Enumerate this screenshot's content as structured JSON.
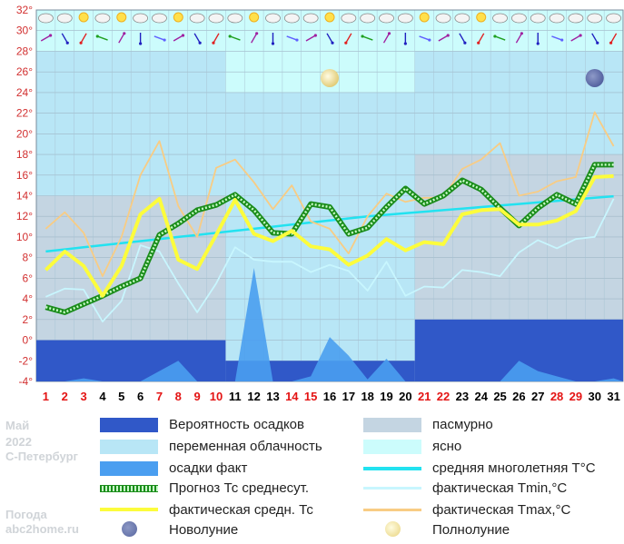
{
  "side_info": {
    "month": "Май",
    "year": "2022",
    "city": "С-Петербург",
    "brand1": "Погода",
    "brand2": "abc2home.ru"
  },
  "legend": {
    "precip_prob": "Вероятность осадков",
    "overcast": "пасмурно",
    "partly": "переменная облачность",
    "clear": "ясно",
    "precip_fact": "осадки факт",
    "normal": "средняя многолетняя T°C",
    "forecast": "Прогноз Тс среднесут.",
    "tmin": "фактическая Tmin,°C",
    "tavg": "фактическая средн. Тс",
    "tmax": "фактическая Tmax,°C",
    "newmoon": "Новолуние",
    "fullmoon": "Полнолуние"
  },
  "colors": {
    "overcast": "#c4d5e2",
    "partly": "#b8e6f6",
    "clear": "#ccfcfc",
    "precip_prob": "#3058c8",
    "precip_fact": "#4a9ef0",
    "normal": "#22e2f0",
    "tmin": "#c8f6fe",
    "tavg": "#fcfc3c",
    "tmax": "#f8cc84",
    "forecast": "#1a8c1a",
    "forecast_dots": "#c8fcc8",
    "weekend": "#e41414",
    "weekday": "#000000"
  },
  "chart_data": {
    "type": "line",
    "x": [
      1,
      2,
      3,
      4,
      5,
      6,
      7,
      8,
      9,
      10,
      11,
      12,
      13,
      14,
      15,
      16,
      17,
      18,
      19,
      20,
      21,
      22,
      23,
      24,
      25,
      26,
      27,
      28,
      29,
      30,
      31
    ],
    "weekend_days": [
      1,
      2,
      3,
      7,
      8,
      9,
      10,
      14,
      15,
      21,
      22,
      28,
      29
    ],
    "ylim": [
      -4,
      32
    ],
    "yticks": [
      -4,
      -2,
      0,
      2,
      4,
      6,
      8,
      10,
      12,
      14,
      16,
      18,
      20,
      22,
      24,
      26,
      28,
      30,
      32
    ],
    "tick_suffix": "°",
    "cloud_bands": [
      {
        "from": 1,
        "to": 10,
        "sky": "partly"
      },
      {
        "from": 10,
        "to": 20,
        "sky": "overcast"
      },
      {
        "from": 20,
        "to": 31,
        "sky": "overcast"
      }
    ],
    "sky_segments": [
      {
        "from": 0.5,
        "to": 10.5,
        "upper": "partly",
        "lower_start": 14,
        "upper_kind": "overcast"
      }
    ],
    "precip_probability": [
      {
        "from": 0.5,
        "to": 10.5,
        "value_top": 0
      },
      {
        "from": 10.5,
        "to": 20.5,
        "value_top": -2
      },
      {
        "from": 20.5,
        "to": 31.5,
        "value_top": 2
      }
    ],
    "precip_fact": [
      -4,
      -4,
      -3.7,
      -4,
      -4,
      -4,
      -3,
      -2,
      -4,
      -4,
      -4,
      7,
      -4,
      -4,
      -3.5,
      0.3,
      -1.5,
      -3.8,
      -1.8,
      -4,
      -4,
      -4,
      -4,
      -4,
      -4,
      -2,
      -3,
      -3.5,
      -4,
      -4,
      -3.7
    ],
    "series": [
      {
        "name": "средняя многолетняя T°C",
        "key": "normal",
        "values": [
          8.6,
          8.8,
          9.0,
          9.2,
          9.4,
          9.6,
          9.8,
          10.0,
          10.2,
          10.4,
          10.6,
          10.8,
          11.0,
          11.2,
          11.4,
          11.6,
          11.8,
          12.0,
          12.15,
          12.3,
          12.45,
          12.6,
          12.75,
          12.9,
          13.05,
          13.2,
          13.35,
          13.5,
          13.65,
          13.8,
          13.95
        ]
      },
      {
        "name": "фактическая Tmin,°C",
        "key": "tmin",
        "values": [
          4.2,
          5.0,
          4.9,
          1.8,
          3.8,
          9.2,
          8.6,
          5.5,
          2.7,
          5.5,
          9.0,
          7.8,
          7.6,
          7.6,
          6.6,
          7.3,
          6.7,
          4.8,
          7.6,
          4.3,
          5.2,
          5.1,
          6.8,
          6.6,
          6.2,
          8.5,
          9.7,
          8.9,
          9.8,
          10.0,
          13.7
        ]
      },
      {
        "name": "фактическая Tmax,°C",
        "key": "tmax",
        "values": [
          10.8,
          12.4,
          10.4,
          6.2,
          10.0,
          16.0,
          19.3,
          13.0,
          10.0,
          16.7,
          17.5,
          15.3,
          12.7,
          15.0,
          11.5,
          10.8,
          8.4,
          12.0,
          14.2,
          13.4,
          13.8,
          13.8,
          16.6,
          17.5,
          19.1,
          14.0,
          14.4,
          15.4,
          15.8,
          22.1,
          18.8
        ]
      },
      {
        "name": "Прогноз Тс среднесут.",
        "key": "forecast",
        "values": [
          3.2,
          2.7,
          3.5,
          4.3,
          5.2,
          6.0,
          10.2,
          11.3,
          12.6,
          13.1,
          14.1,
          12.6,
          10.4,
          10.3,
          13.2,
          12.9,
          10.3,
          10.9,
          12.9,
          14.7,
          13.2,
          14.0,
          15.5,
          14.6,
          12.8,
          11.1,
          12.8,
          14.1,
          13.2,
          17.0,
          17.0
        ]
      },
      {
        "name": "фактическая средн. Тс",
        "key": "tavg",
        "values": [
          6.8,
          8.6,
          7.2,
          4.3,
          7.2,
          12.2,
          13.7,
          7.8,
          6.9,
          10.2,
          13.6,
          10.3,
          9.6,
          10.6,
          9.1,
          8.8,
          7.3,
          8.2,
          9.8,
          8.7,
          9.5,
          9.3,
          12.2,
          12.6,
          12.7,
          11.2,
          11.2,
          11.6,
          12.5,
          15.8,
          15.9
        ]
      }
    ],
    "full_moon_day": 16,
    "new_moon_day": 30
  }
}
